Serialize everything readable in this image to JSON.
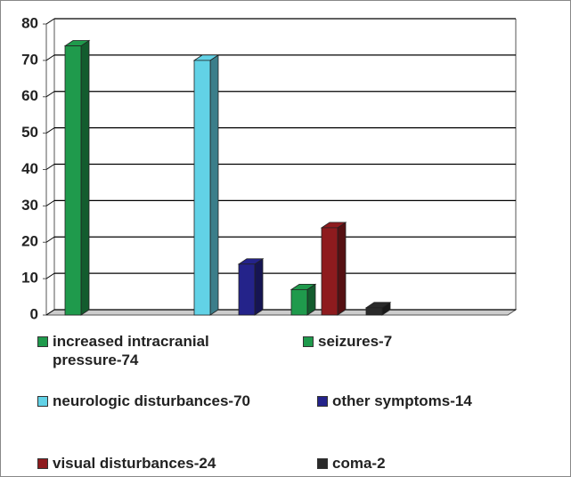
{
  "chart_data": {
    "type": "bar",
    "series": [
      {
        "name": "increased intracranial pressure-74",
        "color": "#1f9a4c",
        "values": [
          74
        ]
      },
      {
        "name": "seizures-7",
        "color": "#1f9a4c",
        "values": [
          7
        ]
      },
      {
        "name": "neurologic disturbances-70",
        "color": "#62d2e6",
        "values": [
          70
        ]
      },
      {
        "name": "other symptoms-14",
        "color": "#24238a",
        "values": [
          14
        ]
      },
      {
        "name": "visual disturbances-24",
        "color": "#8e1b1e",
        "values": [
          24
        ]
      },
      {
        "name": "coma-2",
        "color": "#2a2a2a",
        "values": [
          2
        ]
      }
    ],
    "ylim": [
      0,
      80
    ],
    "yticks": [
      0,
      10,
      20,
      30,
      40,
      50,
      60,
      70,
      80
    ],
    "grid": true
  }
}
